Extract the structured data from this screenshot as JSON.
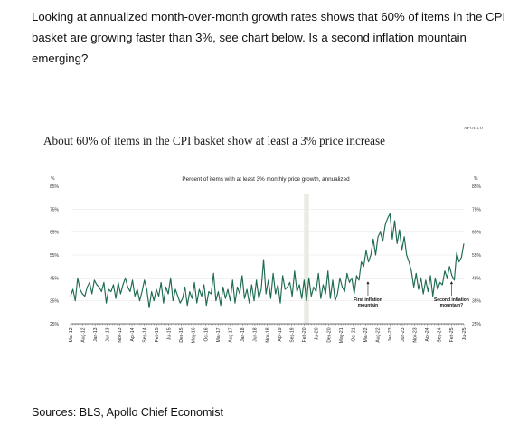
{
  "intro_text": "Looking at annualized month-over-month growth rates shows that 60% of items in the CPI basket are growing faster than 3%, see chart below. Is a second inflation mountain emerging?",
  "brand": "APOLLO",
  "sources": "Sources: BLS, Apollo Chief Economist",
  "chart_data": {
    "type": "line",
    "title": "About 60% of items in the CPI basket show at least a 3% price increase",
    "subtitle": "Percent of items with at least 3% monthly price growth, annualized",
    "y_unit_left": "%",
    "y_unit_right": "%",
    "ylim": [
      25,
      85
    ],
    "y_ticks": [
      25,
      35,
      45,
      55,
      65,
      75,
      85
    ],
    "y_tick_labels": [
      "25%",
      "35%",
      "45%",
      "55%",
      "65%",
      "75%",
      "85%"
    ],
    "x_start": "2012-03",
    "x_end": "2025-07",
    "x_tick_labels": [
      "Mar-12",
      "Aug-12",
      "Jan-13",
      "Jun-13",
      "Nov-13",
      "Apr-14",
      "Sep-14",
      "Feb-15",
      "Jul-15",
      "Dec-15",
      "May-16",
      "Oct-16",
      "Mar-17",
      "Aug-17",
      "Jan-18",
      "Jun-18",
      "Nov-18",
      "Apr-19",
      "Sep-19",
      "Feb-20",
      "Jul-20",
      "Dec-20",
      "May-21",
      "Oct-21",
      "Mar-22",
      "Aug-22",
      "Jan-23",
      "Jun-23",
      "Nov-23",
      "Apr-24",
      "Sep-24",
      "Feb-25",
      "Jul-25"
    ],
    "shaded_period": [
      "2020-02",
      "2020-04"
    ],
    "line_color": "#1e6b50",
    "shade_color": "#ebebe6",
    "annotations": [
      {
        "line1": "First inflation",
        "line2": "mountain",
        "x": "2022-04",
        "y": 38
      },
      {
        "line1": "Second inflation",
        "line2": "mountain?",
        "x": "2025-02",
        "y": 38
      }
    ],
    "series": [
      {
        "values": [
          37,
          40,
          35,
          45,
          40,
          38,
          37,
          41,
          43,
          38,
          44,
          42,
          41,
          39,
          43,
          34,
          40,
          39,
          42,
          36,
          43,
          38,
          42,
          45,
          41,
          39,
          44,
          37,
          40,
          35,
          39,
          44,
          40,
          32,
          39,
          35,
          40,
          37,
          43,
          34,
          41,
          38,
          45,
          35,
          40,
          37,
          34,
          36,
          41,
          33,
          39,
          36,
          43,
          34,
          40,
          37,
          42,
          33,
          39,
          38,
          47,
          35,
          39,
          33,
          41,
          36,
          40,
          35,
          44,
          34,
          41,
          38,
          46,
          36,
          40,
          34,
          42,
          35,
          44,
          36,
          40,
          53,
          38,
          44,
          36,
          47,
          38,
          42,
          34,
          46,
          40,
          41,
          43,
          37,
          48,
          39,
          42,
          36,
          44,
          35,
          45,
          37,
          41,
          39,
          47,
          36,
          42,
          38,
          48,
          36,
          44,
          35,
          38,
          45,
          41,
          39,
          47,
          43,
          45,
          38,
          46,
          44,
          52,
          50,
          57,
          52,
          55,
          62,
          55,
          63,
          65,
          61,
          68,
          71,
          73,
          62,
          70,
          60,
          66,
          57,
          63,
          55,
          52,
          48,
          41,
          47,
          40,
          45,
          38,
          44,
          39,
          46,
          37,
          45,
          40,
          43,
          42,
          48,
          45,
          50,
          46,
          44,
          56,
          52,
          54,
          60
        ]
      }
    ]
  }
}
